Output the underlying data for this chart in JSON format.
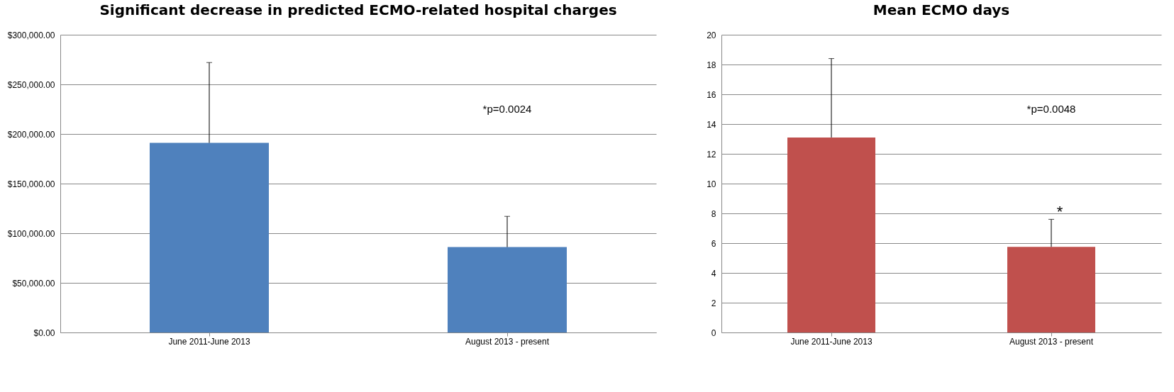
{
  "chart_data": [
    {
      "type": "bar",
      "title": "Significant decrease in predicted ECMO-related hospital charges",
      "categories": [
        "June 2011-June 2013",
        "August 2013 - present"
      ],
      "values": [
        191000,
        86000
      ],
      "errors": [
        [
          191000,
          272000
        ],
        [
          86000,
          117000
        ]
      ],
      "color": "#4f81bd",
      "ylim": [
        0,
        300000
      ],
      "yticks": [
        {
          "value": 0,
          "label": "$0.00"
        },
        {
          "value": 50000,
          "label": "$50,000.00"
        },
        {
          "value": 100000,
          "label": "$100,000.00"
        },
        {
          "value": 150000,
          "label": "$150,000.00"
        },
        {
          "value": 200000,
          "label": "$200,000.00"
        },
        {
          "value": 250000,
          "label": "$250,000.00"
        },
        {
          "value": 300000,
          "label": "$300,000.00"
        }
      ],
      "grid": "y",
      "annotations": [
        "*p=0.0024"
      ]
    },
    {
      "type": "bar",
      "title": "Mean ECMO days",
      "categories": [
        "June 2011-June 2013",
        "August 2013 - present"
      ],
      "values": [
        13.1,
        5.75
      ],
      "errors": [
        [
          13.1,
          18.4
        ],
        [
          5.75,
          7.6
        ]
      ],
      "color": "#c0504d",
      "ylim": [
        0,
        20
      ],
      "yticks": [
        0,
        2,
        4,
        6,
        8,
        10,
        12,
        14,
        16,
        18,
        20
      ],
      "grid": "y",
      "annotations": [
        "*p=0.0048",
        {
          "text": "*",
          "x": "August 2013 - present",
          "y": 7.6
        }
      ]
    }
  ]
}
